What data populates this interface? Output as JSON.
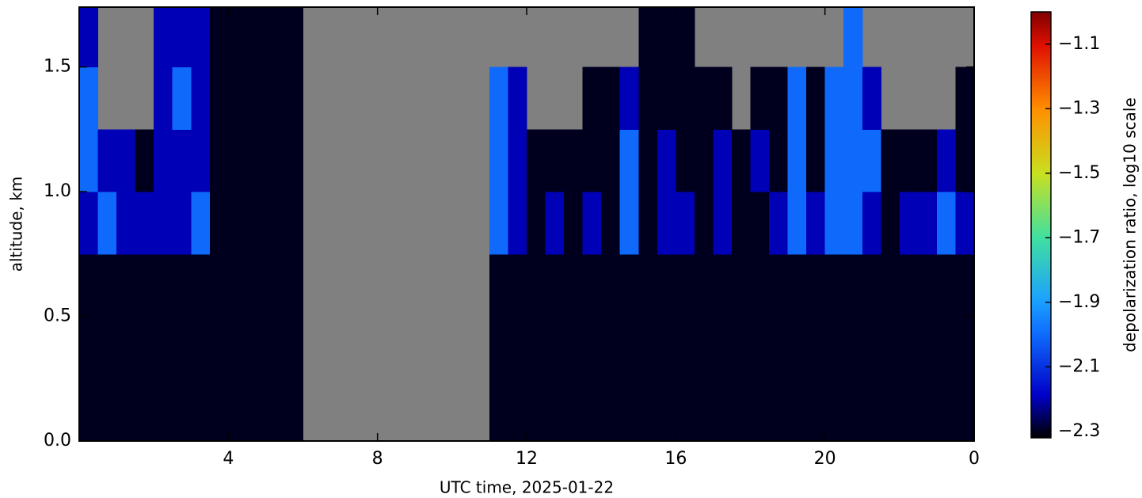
{
  "chart_data": {
    "type": "heatmap",
    "xlabel": "UTC time,  2025-01-22",
    "ylabel": "altitude, km",
    "xlim": [
      0,
      24
    ],
    "ylim": [
      0,
      1.74
    ],
    "xticks": [
      4,
      8,
      12,
      16,
      20,
      {
        "value": 24,
        "label": "0"
      }
    ],
    "yticks": [
      {
        "value": 0,
        "label": "0.0"
      },
      0.5,
      {
        "value": 1,
        "label": "1.0"
      },
      1.5
    ],
    "missing_color": "#808080",
    "x": [
      0,
      0.5,
      1,
      1.5,
      2,
      2.5,
      3,
      3.5,
      4,
      4.5,
      5,
      5.5,
      6,
      6.5,
      7,
      7.5,
      8,
      8.5,
      9,
      9.5,
      10,
      10.5,
      11,
      11.5,
      12,
      12.5,
      13,
      13.5,
      14,
      14.5,
      15,
      15.5,
      16,
      16.5,
      17,
      17.5,
      18,
      18.5,
      19,
      19.5,
      20,
      20.5,
      21,
      21.5,
      22,
      22.5,
      23,
      23.5
    ],
    "y": [
      0,
      0.25,
      0.5,
      0.75,
      1,
      1.25,
      1.5
    ],
    "z": [
      [
        -2.3,
        -2.3,
        -2.3,
        -2.3,
        -2.3,
        -2.3,
        -2.3,
        -2.3,
        -2.3,
        -2.3,
        -2.3,
        -2.3,
        null,
        null,
        null,
        null,
        null,
        null,
        null,
        null,
        null,
        null,
        -2.3,
        -2.3,
        -2.3,
        -2.3,
        -2.3,
        -2.3,
        -2.3,
        -2.3,
        -2.3,
        -2.3,
        -2.3,
        -2.3,
        -2.3,
        -2.3,
        -2.3,
        -2.3,
        -2.3,
        -2.3,
        -2.3,
        -2.3,
        -2.3,
        -2.3,
        -2.3,
        -2.3,
        -2.3,
        -2.3
      ],
      [
        -2.3,
        -2.3,
        -2.3,
        -2.3,
        -2.3,
        -2.3,
        -2.3,
        -2.3,
        -2.3,
        -2.3,
        -2.3,
        -2.3,
        null,
        null,
        null,
        null,
        null,
        null,
        null,
        null,
        null,
        null,
        -2.3,
        -2.3,
        -2.3,
        -2.3,
        -2.3,
        -2.3,
        -2.3,
        -2.3,
        -2.3,
        -2.3,
        -2.3,
        -2.3,
        -2.3,
        -2.3,
        -2.3,
        -2.3,
        -2.3,
        -2.3,
        -2.3,
        -2.3,
        -2.3,
        -2.3,
        -2.3,
        -2.3,
        -2.3,
        -2.3
      ],
      [
        -2.3,
        -2.3,
        -2.3,
        -2.3,
        -2.3,
        -2.3,
        -2.3,
        -2.3,
        -2.3,
        -2.3,
        -2.3,
        -2.3,
        null,
        null,
        null,
        null,
        null,
        null,
        null,
        null,
        null,
        null,
        -2.3,
        -2.3,
        -2.3,
        -2.3,
        -2.3,
        -2.3,
        -2.3,
        -2.3,
        -2.3,
        -2.3,
        -2.3,
        -2.3,
        -2.3,
        -2.3,
        -2.3,
        -2.3,
        -2.3,
        -2.3,
        -2.3,
        -2.3,
        -2.3,
        -2.3,
        -2.3,
        -2.3,
        -2.3,
        -2.3
      ],
      [
        -2.2,
        -2.0,
        -2.2,
        -2.2,
        -2.2,
        -2.2,
        -2.0,
        -2.3,
        -2.3,
        -2.3,
        -2.3,
        -2.3,
        null,
        null,
        null,
        null,
        null,
        null,
        null,
        null,
        null,
        null,
        -2.0,
        -2.2,
        -2.3,
        -2.2,
        -2.3,
        -2.2,
        -2.3,
        -2.0,
        -2.3,
        -2.2,
        -2.2,
        -2.3,
        -2.2,
        -2.3,
        -2.3,
        -2.2,
        -2.0,
        -2.2,
        -2.0,
        -2.0,
        -2.2,
        -2.3,
        -2.2,
        -2.2,
        -2.0,
        -2.2
      ],
      [
        -2.0,
        -2.2,
        -2.2,
        -2.3,
        -2.2,
        -2.2,
        -2.2,
        -2.3,
        -2.3,
        -2.3,
        -2.3,
        -2.3,
        null,
        null,
        null,
        null,
        null,
        null,
        null,
        null,
        null,
        null,
        -2.0,
        -2.2,
        -2.3,
        -2.3,
        -2.3,
        -2.3,
        -2.3,
        -2.0,
        -2.3,
        -2.2,
        -2.3,
        -2.3,
        -2.2,
        -2.3,
        -2.2,
        -2.3,
        -2.0,
        -2.3,
        -2.0,
        -2.0,
        -2.0,
        -2.3,
        -2.3,
        -2.3,
        -2.2,
        -2.3
      ],
      [
        -2.0,
        null,
        null,
        null,
        -2.2,
        -2.0,
        -2.2,
        -2.3,
        -2.3,
        -2.3,
        -2.3,
        -2.3,
        null,
        null,
        null,
        null,
        null,
        null,
        null,
        null,
        null,
        null,
        -2.0,
        -2.2,
        null,
        null,
        null,
        -2.3,
        -2.3,
        -2.2,
        -2.3,
        -2.3,
        -2.3,
        -2.3,
        -2.3,
        null,
        -2.3,
        -2.3,
        -2.0,
        -2.3,
        -2.0,
        -2.0,
        -2.2,
        null,
        null,
        null,
        null,
        -2.3
      ],
      [
        -2.2,
        null,
        null,
        null,
        -2.2,
        -2.2,
        -2.2,
        -2.3,
        -2.3,
        -2.3,
        -2.3,
        -2.3,
        null,
        null,
        null,
        null,
        null,
        null,
        null,
        null,
        null,
        null,
        null,
        null,
        null,
        null,
        null,
        null,
        null,
        null,
        -2.3,
        -2.3,
        -2.3,
        null,
        null,
        null,
        null,
        null,
        null,
        null,
        null,
        -2.0,
        null,
        null,
        null,
        null,
        null,
        null
      ]
    ],
    "colorbar": {
      "label": "depolarization ratio, log10 scale",
      "lim": [
        -2.32,
        -1.0
      ],
      "ticks": [
        {
          "value": -2.3,
          "label": "−2.3"
        },
        {
          "value": -2.1,
          "label": "−2.1"
        },
        {
          "value": -1.9,
          "label": "−1.9"
        },
        {
          "value": -1.7,
          "label": "−1.7"
        },
        {
          "value": -1.5,
          "label": "−1.5"
        },
        {
          "value": -1.3,
          "label": "−1.3"
        },
        {
          "value": -1.1,
          "label": "−1.1"
        }
      ]
    }
  }
}
